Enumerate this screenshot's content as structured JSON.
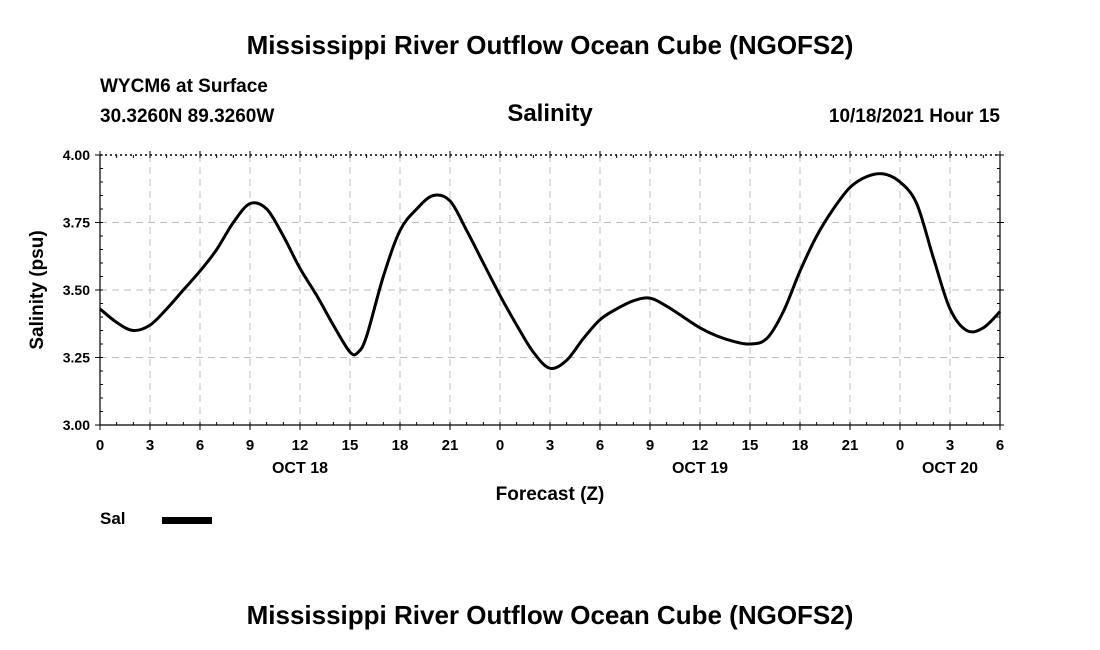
{
  "page": {
    "title": "Mississippi River Outflow Ocean Cube (NGOFS2)",
    "footer_title": "Mississippi River Outflow Ocean Cube (NGOFS2)",
    "station": "WYCM6 at Surface",
    "coords": "30.3260N  89.3260W",
    "datetime": "10/18/2021 Hour 15"
  },
  "chart_data": {
    "type": "line",
    "title": "Salinity",
    "xlabel": "Forecast (Z)",
    "ylabel": "Salinity (psu)",
    "xlim": [
      0,
      54
    ],
    "ylim": [
      3.0,
      4.0
    ],
    "yticks": [
      "3.00",
      "3.25",
      "3.50",
      "3.75",
      "4.00"
    ],
    "xtick_labels": [
      "0",
      "3",
      "6",
      "9",
      "12",
      "15",
      "18",
      "21",
      "0",
      "3",
      "6",
      "9",
      "12",
      "15",
      "18",
      "21",
      "0",
      "3",
      "6"
    ],
    "date_labels": [
      {
        "label": "OCT 18",
        "at_hour": 12
      },
      {
        "label": "OCT 19",
        "at_hour": 36
      },
      {
        "label": "OCT 20",
        "at_hour": 51
      }
    ],
    "grid": true,
    "legend": {
      "position": "bottom-left",
      "entries": [
        {
          "name": "Sal",
          "color": "#000000"
        }
      ]
    },
    "series": [
      {
        "name": "Sal",
        "color": "#000000",
        "x": [
          0,
          1,
          2,
          3,
          4,
          5,
          6,
          7,
          8,
          9,
          10,
          11,
          12,
          13,
          14,
          15,
          15.5,
          16,
          17,
          18,
          19,
          20,
          21,
          22,
          23,
          24,
          25,
          26,
          27,
          28,
          29,
          30,
          31,
          32,
          33,
          34,
          35,
          36,
          37,
          38,
          39,
          40,
          41,
          42,
          43,
          44,
          45,
          46,
          47,
          48,
          49,
          50,
          51,
          52,
          53,
          54
        ],
        "values": [
          3.43,
          3.38,
          3.35,
          3.37,
          3.43,
          3.5,
          3.57,
          3.65,
          3.75,
          3.82,
          3.8,
          3.7,
          3.58,
          3.48,
          3.37,
          3.27,
          3.27,
          3.33,
          3.55,
          3.72,
          3.8,
          3.85,
          3.83,
          3.72,
          3.6,
          3.48,
          3.37,
          3.27,
          3.21,
          3.24,
          3.32,
          3.39,
          3.43,
          3.46,
          3.47,
          3.44,
          3.4,
          3.36,
          3.33,
          3.31,
          3.3,
          3.32,
          3.42,
          3.57,
          3.7,
          3.8,
          3.88,
          3.92,
          3.93,
          3.9,
          3.82,
          3.62,
          3.43,
          3.35,
          3.36,
          3.42
        ]
      }
    ]
  }
}
